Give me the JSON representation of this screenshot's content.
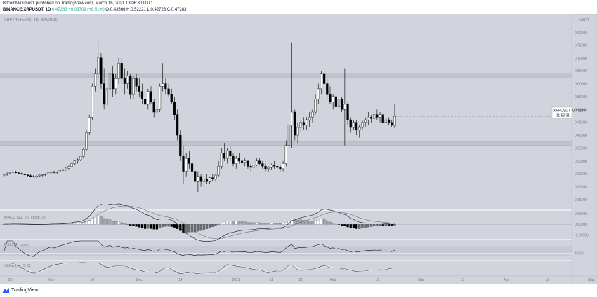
{
  "header": {
    "line1": "BitcoinMaximus1 published on TradingView.com, March 16, 2021 13:06:30 UTC",
    "symbol": "BINANCE:XRPUSDT, 1D",
    "change": "0.47283 +0.03709 (+8.51%)",
    "ohlc": "O:0.43566 H:0.52221 L:0.42723 C:0.47283"
  },
  "chart_title": "XRP / TetherUS, 1D, BINANCE",
  "price_label": "XRPUSDT",
  "price_value": "0.47283",
  "countdown": "11:53:31",
  "currency": "USDT",
  "footer": {
    "brand": "TradingView"
  },
  "colors": {
    "background": "#d1d4dc",
    "zone": "#bfc3cc",
    "candle_up": "#ffffff",
    "candle_down": "#000000"
  },
  "chart_data": [
    {
      "type": "candlestick",
      "title": "XRP / TetherUS, 1D, BINANCE",
      "ylim": [
        0.12,
        0.86
      ],
      "y_ticks": [
        "0.80000",
        "0.75000",
        "0.70000",
        "0.65000",
        "0.60000",
        "0.55000",
        "0.50000",
        "0.45000",
        "0.40000",
        "0.35000",
        "0.30000",
        "0.25000",
        "0.20000",
        "0.15000"
      ],
      "y_tick_values": [
        0.8,
        0.75,
        0.7,
        0.65,
        0.6,
        0.55,
        0.5,
        0.45,
        0.4,
        0.35,
        0.3,
        0.25,
        0.2,
        0.15
      ],
      "x_tick_labels": [
        "23",
        "Nov",
        "16",
        "Dec",
        "14",
        "2021",
        "11",
        "21",
        "Feb",
        "15",
        "Mar",
        "15",
        "Apr",
        "12",
        "May"
      ],
      "x_tick_index": [
        2,
        16,
        30,
        46,
        60,
        79,
        91,
        101,
        112,
        127,
        142,
        156,
        171,
        185,
        200
      ],
      "zones": [
        {
          "from": 0.625,
          "to": 0.64
        },
        {
          "from": 0.36,
          "to": 0.375
        }
      ],
      "candles": [
        [
          0.245,
          0.25,
          0.24,
          0.248
        ],
        [
          0.248,
          0.255,
          0.243,
          0.252
        ],
        [
          0.252,
          0.258,
          0.248,
          0.255
        ],
        [
          0.255,
          0.26,
          0.25,
          0.258
        ],
        [
          0.258,
          0.262,
          0.252,
          0.254
        ],
        [
          0.254,
          0.258,
          0.248,
          0.252
        ],
        [
          0.252,
          0.256,
          0.246,
          0.249
        ],
        [
          0.249,
          0.253,
          0.243,
          0.246
        ],
        [
          0.246,
          0.25,
          0.24,
          0.243
        ],
        [
          0.243,
          0.248,
          0.238,
          0.24
        ],
        [
          0.24,
          0.245,
          0.236,
          0.238
        ],
        [
          0.238,
          0.244,
          0.234,
          0.242
        ],
        [
          0.242,
          0.248,
          0.238,
          0.245
        ],
        [
          0.245,
          0.25,
          0.24,
          0.247
        ],
        [
          0.247,
          0.252,
          0.242,
          0.25
        ],
        [
          0.25,
          0.256,
          0.246,
          0.254
        ],
        [
          0.254,
          0.26,
          0.25,
          0.257
        ],
        [
          0.257,
          0.262,
          0.252,
          0.255
        ],
        [
          0.255,
          0.26,
          0.25,
          0.258
        ],
        [
          0.258,
          0.266,
          0.254,
          0.263
        ],
        [
          0.263,
          0.27,
          0.258,
          0.267
        ],
        [
          0.267,
          0.275,
          0.262,
          0.272
        ],
        [
          0.272,
          0.282,
          0.268,
          0.279
        ],
        [
          0.279,
          0.295,
          0.275,
          0.29
        ],
        [
          0.29,
          0.305,
          0.285,
          0.3
        ],
        [
          0.3,
          0.31,
          0.29,
          0.305
        ],
        [
          0.305,
          0.32,
          0.3,
          0.318
        ],
        [
          0.318,
          0.35,
          0.31,
          0.345
        ],
        [
          0.345,
          0.42,
          0.34,
          0.41
        ],
        [
          0.41,
          0.48,
          0.4,
          0.47
        ],
        [
          0.47,
          0.6,
          0.46,
          0.59
        ],
        [
          0.59,
          0.66,
          0.57,
          0.64
        ],
        [
          0.64,
          0.78,
          0.62,
          0.7
        ],
        [
          0.7,
          0.72,
          0.58,
          0.6
        ],
        [
          0.6,
          0.66,
          0.5,
          0.52
        ],
        [
          0.52,
          0.6,
          0.5,
          0.58
        ],
        [
          0.58,
          0.68,
          0.56,
          0.64
        ],
        [
          0.64,
          0.67,
          0.55,
          0.58
        ],
        [
          0.58,
          0.64,
          0.56,
          0.62
        ],
        [
          0.62,
          0.7,
          0.6,
          0.68
        ],
        [
          0.68,
          0.7,
          0.6,
          0.62
        ],
        [
          0.62,
          0.66,
          0.56,
          0.6
        ],
        [
          0.6,
          0.65,
          0.58,
          0.63
        ],
        [
          0.63,
          0.64,
          0.54,
          0.56
        ],
        [
          0.56,
          0.63,
          0.54,
          0.62
        ],
        [
          0.62,
          0.64,
          0.57,
          0.59
        ],
        [
          0.59,
          0.62,
          0.55,
          0.57
        ],
        [
          0.57,
          0.6,
          0.52,
          0.54
        ],
        [
          0.54,
          0.57,
          0.5,
          0.52
        ],
        [
          0.52,
          0.58,
          0.5,
          0.57
        ],
        [
          0.57,
          0.59,
          0.52,
          0.53
        ],
        [
          0.53,
          0.54,
          0.47,
          0.49
        ],
        [
          0.49,
          0.53,
          0.47,
          0.5
        ],
        [
          0.5,
          0.6,
          0.49,
          0.59
        ],
        [
          0.59,
          0.68,
          0.57,
          0.6
        ],
        [
          0.6,
          0.62,
          0.56,
          0.58
        ],
        [
          0.58,
          0.6,
          0.55,
          0.56
        ],
        [
          0.56,
          0.58,
          0.52,
          0.53
        ],
        [
          0.53,
          0.55,
          0.46,
          0.48
        ],
        [
          0.48,
          0.5,
          0.38,
          0.4
        ],
        [
          0.4,
          0.42,
          0.3,
          0.32
        ],
        [
          0.32,
          0.36,
          0.21,
          0.26
        ],
        [
          0.26,
          0.33,
          0.24,
          0.31
        ],
        [
          0.31,
          0.34,
          0.27,
          0.29
        ],
        [
          0.29,
          0.31,
          0.24,
          0.26
        ],
        [
          0.26,
          0.28,
          0.2,
          0.22
        ],
        [
          0.22,
          0.26,
          0.18,
          0.24
        ],
        [
          0.24,
          0.25,
          0.2,
          0.22
        ],
        [
          0.22,
          0.24,
          0.2,
          0.23
        ],
        [
          0.23,
          0.25,
          0.21,
          0.22
        ],
        [
          0.22,
          0.24,
          0.21,
          0.235
        ],
        [
          0.235,
          0.25,
          0.22,
          0.23
        ],
        [
          0.23,
          0.25,
          0.22,
          0.245
        ],
        [
          0.245,
          0.3,
          0.24,
          0.28
        ],
        [
          0.28,
          0.35,
          0.27,
          0.33
        ],
        [
          0.33,
          0.37,
          0.3,
          0.31
        ],
        [
          0.31,
          0.35,
          0.29,
          0.34
        ],
        [
          0.34,
          0.36,
          0.3,
          0.32
        ],
        [
          0.32,
          0.33,
          0.28,
          0.29
        ],
        [
          0.29,
          0.32,
          0.27,
          0.31
        ],
        [
          0.31,
          0.33,
          0.29,
          0.3
        ],
        [
          0.3,
          0.32,
          0.28,
          0.295
        ],
        [
          0.295,
          0.31,
          0.28,
          0.3
        ],
        [
          0.3,
          0.3,
          0.27,
          0.28
        ],
        [
          0.28,
          0.29,
          0.26,
          0.275
        ],
        [
          0.275,
          0.29,
          0.26,
          0.285
        ],
        [
          0.285,
          0.31,
          0.28,
          0.3
        ],
        [
          0.3,
          0.31,
          0.285,
          0.29
        ],
        [
          0.29,
          0.3,
          0.27,
          0.28
        ],
        [
          0.28,
          0.29,
          0.26,
          0.27
        ],
        [
          0.27,
          0.28,
          0.26,
          0.275
        ],
        [
          0.275,
          0.29,
          0.265,
          0.285
        ],
        [
          0.285,
          0.3,
          0.27,
          0.28
        ],
        [
          0.28,
          0.29,
          0.27,
          0.275
        ],
        [
          0.275,
          0.285,
          0.26,
          0.27
        ],
        [
          0.27,
          0.3,
          0.26,
          0.29
        ],
        [
          0.29,
          0.38,
          0.28,
          0.36
        ],
        [
          0.36,
          0.46,
          0.35,
          0.44
        ],
        [
          0.44,
          0.76,
          0.35,
          0.49
        ],
        [
          0.49,
          0.5,
          0.38,
          0.4
        ],
        [
          0.4,
          0.45,
          0.37,
          0.43
        ],
        [
          0.43,
          0.46,
          0.41,
          0.45
        ],
        [
          0.45,
          0.47,
          0.42,
          0.44
        ],
        [
          0.44,
          0.47,
          0.42,
          0.46
        ],
        [
          0.46,
          0.49,
          0.43,
          0.47
        ],
        [
          0.47,
          0.5,
          0.45,
          0.49
        ],
        [
          0.49,
          0.56,
          0.48,
          0.54
        ],
        [
          0.54,
          0.6,
          0.52,
          0.58
        ],
        [
          0.58,
          0.65,
          0.56,
          0.64
        ],
        [
          0.64,
          0.66,
          0.58,
          0.6
        ],
        [
          0.6,
          0.62,
          0.54,
          0.56
        ],
        [
          0.56,
          0.59,
          0.52,
          0.53
        ],
        [
          0.53,
          0.56,
          0.5,
          0.55
        ],
        [
          0.55,
          0.57,
          0.5,
          0.51
        ],
        [
          0.51,
          0.55,
          0.49,
          0.54
        ],
        [
          0.54,
          0.55,
          0.49,
          0.5
        ],
        [
          0.5,
          0.66,
          0.36,
          0.52
        ],
        [
          0.52,
          0.53,
          0.44,
          0.46
        ],
        [
          0.46,
          0.47,
          0.41,
          0.43
        ],
        [
          0.43,
          0.46,
          0.42,
          0.45
        ],
        [
          0.45,
          0.46,
          0.4,
          0.42
        ],
        [
          0.42,
          0.44,
          0.39,
          0.43
        ],
        [
          0.43,
          0.46,
          0.42,
          0.45
        ],
        [
          0.45,
          0.47,
          0.43,
          0.46
        ],
        [
          0.46,
          0.49,
          0.44,
          0.47
        ],
        [
          0.47,
          0.48,
          0.45,
          0.465
        ],
        [
          0.465,
          0.49,
          0.45,
          0.48
        ],
        [
          0.48,
          0.5,
          0.46,
          0.47
        ],
        [
          0.47,
          0.49,
          0.45,
          0.48
        ],
        [
          0.48,
          0.49,
          0.44,
          0.45
        ],
        [
          0.45,
          0.47,
          0.43,
          0.46
        ],
        [
          0.46,
          0.47,
          0.44,
          0.45
        ],
        [
          0.45,
          0.46,
          0.43,
          0.44
        ],
        [
          0.436,
          0.522,
          0.427,
          0.473
        ]
      ],
      "current_price": 0.47283
    },
    {
      "type": "histogram+line",
      "title": "MACD (12, 26, close, 9)",
      "ylim": [
        -0.065,
        0.06
      ],
      "y_ticks": [
        "0.05000",
        "0.00000",
        "-0.05000"
      ],
      "y_tick_values": [
        0.05,
        0,
        -0.05
      ]
    },
    {
      "type": "line",
      "title": "RSI (14, close)",
      "ylim": [
        15,
        90
      ],
      "y_ticks": [
        "40.00"
      ],
      "y_tick_values": [
        40
      ]
    },
    {
      "type": "line",
      "title": "Stoch (14, 3, 3)",
      "ylim": [
        0,
        100
      ]
    }
  ]
}
